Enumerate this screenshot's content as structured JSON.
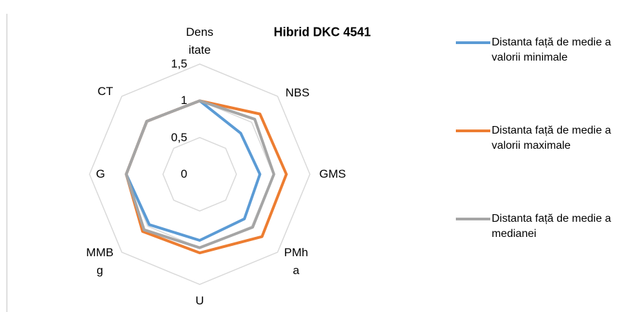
{
  "chart_data": {
    "type": "radar",
    "title": "Hibrid DKC 4541",
    "categories": [
      "Densitate",
      "NBS",
      "GMS",
      "PMha",
      "U",
      "MMBg",
      "G",
      "CT"
    ],
    "rlim": [
      0,
      1.5
    ],
    "rticks": [
      0,
      {
        "value": 0.5,
        "label": "0,5"
      },
      1,
      {
        "value": 1.5,
        "label": "1,5"
      }
    ],
    "grid": true,
    "legend": "right",
    "series": [
      {
        "name": "Distanta față de medie a valorii minimale",
        "color": "#5b9bd5",
        "values": [
          1,
          0.79,
          0.82,
          0.86,
          0.9,
          0.97,
          1.0,
          1.02
        ]
      },
      {
        "name": "Distanta față de medie a valorii maximale",
        "color": "#ed7d31",
        "values": [
          1,
          1.16,
          1.18,
          1.2,
          1.07,
          1.1,
          1.0,
          1.02
        ]
      },
      {
        "name": "Distanta față de medie a medianei",
        "color": "#a5a5a5",
        "values": [
          1,
          1.06,
          1.01,
          1.02,
          1.0,
          1.07,
          1.0,
          1.02
        ]
      }
    ]
  }
}
